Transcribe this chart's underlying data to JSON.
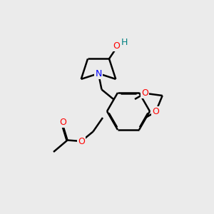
{
  "bg_color": "#ebebeb",
  "atom_colors": {
    "O": "#ff0000",
    "N": "#0000ff",
    "C": "#000000",
    "H": "#008080"
  },
  "bond_color": "#000000",
  "bond_width": 1.8,
  "dbo": 0.035
}
